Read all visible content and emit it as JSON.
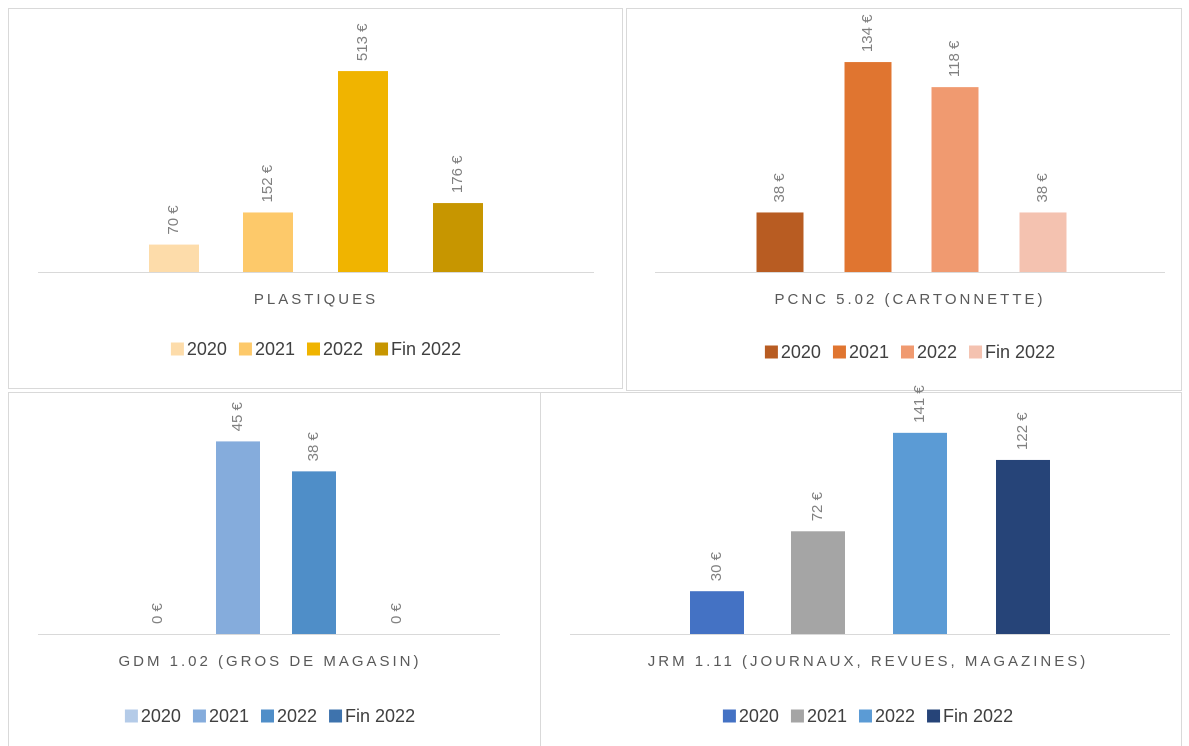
{
  "chart_data": [
    {
      "type": "bar",
      "categories": [
        "PLASTIQUES"
      ],
      "ylim": [
        0,
        600
      ],
      "series": [
        {
          "name": "2020",
          "color": "#fddcaa",
          "values": [
            70
          ],
          "value_labels": [
            "70 €"
          ]
        },
        {
          "name": "2021",
          "color": "#fdc96a",
          "values": [
            152
          ],
          "value_labels": [
            "152 €"
          ]
        },
        {
          "name": "2022",
          "color": "#f0b400",
          "values": [
            513
          ],
          "value_labels": [
            "513 €"
          ]
        },
        {
          "name": "Fin 2022",
          "color": "#c79600",
          "values": [
            176
          ],
          "value_labels": [
            "176 €"
          ]
        }
      ]
    },
    {
      "type": "bar",
      "categories": [
        "PCNC 5.02 (CARTONNETTE)"
      ],
      "ylim": [
        0,
        150
      ],
      "series": [
        {
          "name": "2020",
          "color": "#b85c22",
          "values": [
            38
          ],
          "value_labels": [
            "38 €"
          ]
        },
        {
          "name": "2021",
          "color": "#e07530",
          "values": [
            134
          ],
          "value_labels": [
            "134 €"
          ]
        },
        {
          "name": "2022",
          "color": "#f09a70",
          "values": [
            118
          ],
          "value_labels": [
            "118 €"
          ]
        },
        {
          "name": "Fin 2022",
          "color": "#f4c2b0",
          "values": [
            38
          ],
          "value_labels": [
            "38 €"
          ]
        }
      ]
    },
    {
      "type": "bar",
      "categories": [
        "GDM 1.02 (GROS DE MAGASIN)"
      ],
      "ylim": [
        0,
        50
      ],
      "series": [
        {
          "name": "2020",
          "color": "#b4cbe8",
          "values": [
            0
          ],
          "value_labels": [
            "0 €"
          ]
        },
        {
          "name": "2021",
          "color": "#85acdc",
          "values": [
            45
          ],
          "value_labels": [
            "45 €"
          ]
        },
        {
          "name": "2022",
          "color": "#4f8ec8",
          "values": [
            38
          ],
          "value_labels": [
            "38 €"
          ]
        },
        {
          "name": "Fin 2022",
          "color": "#3e73ad",
          "values": [
            0
          ],
          "value_labels": [
            "0 €"
          ]
        }
      ]
    },
    {
      "type": "bar",
      "categories": [
        "JRM 1.11 (JOURNAUX, REVUES, MAGAZINES)"
      ],
      "ylim": [
        0,
        150
      ],
      "series": [
        {
          "name": "2020",
          "color": "#4472c4",
          "values": [
            30
          ],
          "value_labels": [
            "30 €"
          ]
        },
        {
          "name": "2021",
          "color": "#a5a5a5",
          "values": [
            72
          ],
          "value_labels": [
            "72 €"
          ]
        },
        {
          "name": "2022",
          "color": "#5b9bd5",
          "values": [
            141
          ],
          "value_labels": [
            "141 €"
          ]
        },
        {
          "name": "Fin 2022",
          "color": "#264478",
          "values": [
            122
          ],
          "value_labels": [
            "122 €"
          ]
        }
      ]
    }
  ]
}
